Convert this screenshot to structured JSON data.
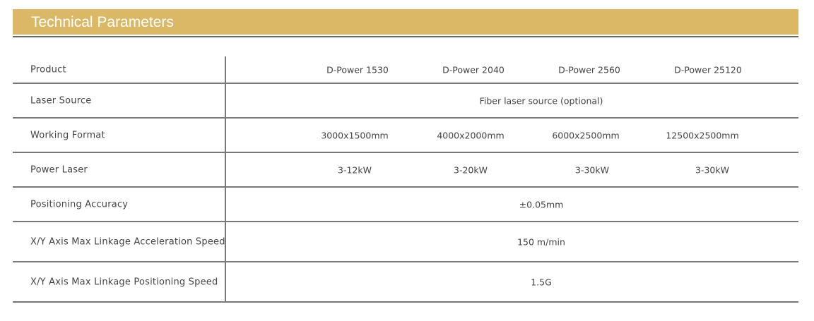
{
  "title": "Technical Parameters",
  "colors": {
    "header_bg": "#dbb865",
    "text": "#444444",
    "rule": "#777777"
  },
  "rows": [
    {
      "label": "Product",
      "values": [
        "D-Power 1530",
        "D-Power 2040",
        "D-Power 2560",
        "D-Power 25120"
      ]
    },
    {
      "label": "Laser Source",
      "value": "Fiber laser source (optional)"
    },
    {
      "label": "Working Format",
      "values": [
        "3000x1500mm",
        "4000x2000mm",
        "6000x2500mm",
        "12500x2500mm"
      ]
    },
    {
      "label": "Power Laser",
      "values": [
        "3-12kW",
        "3-20kW",
        "3-30kW",
        "3-30kW"
      ]
    },
    {
      "label": "Positioning Accuracy",
      "value": "±0.05mm"
    },
    {
      "label": "X/Y Axis Max Linkage Acceleration Speed",
      "value": "150 m/min"
    },
    {
      "label": "X/Y Axis Max Linkage Positioning Speed",
      "value": "1.5G"
    }
  ]
}
